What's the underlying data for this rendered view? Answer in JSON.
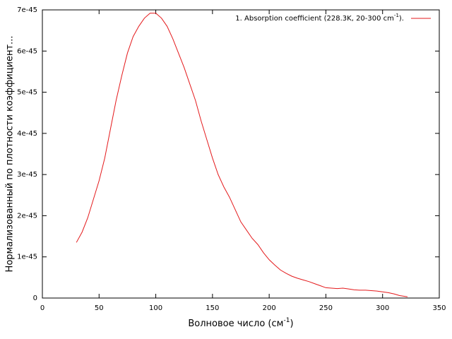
{
  "chart_data": {
    "type": "line",
    "x_label": [
      "Волновое число (см",
      "-1",
      ")"
    ],
    "y_label": "Нормализованный по плотности коэффициент...",
    "xlim": [
      0,
      350
    ],
    "xticks": [
      0,
      50,
      100,
      150,
      200,
      250,
      300,
      350
    ],
    "ylim": [
      0,
      7e-45
    ],
    "yticks": [
      0,
      {
        "value": 1e-45,
        "label": "1e-45"
      },
      {
        "value": 2e-45,
        "label": "2e-45"
      },
      {
        "value": 3e-45,
        "label": "3e-45"
      },
      {
        "value": 4e-45,
        "label": "4e-45"
      },
      {
        "value": 5e-45,
        "label": "5e-45"
      },
      {
        "value": 6e-45,
        "label": "6e-45"
      },
      {
        "value": 7e-45,
        "label": "7e-45"
      }
    ],
    "legend": "upper right",
    "x": [
      30,
      35,
      40,
      45,
      50,
      55,
      60,
      65,
      70,
      75,
      80,
      85,
      90,
      95,
      100,
      105,
      110,
      115,
      120,
      125,
      130,
      135,
      140,
      145,
      150,
      155,
      160,
      165,
      170,
      175,
      180,
      185,
      190,
      195,
      200,
      205,
      210,
      215,
      220,
      225,
      230,
      235,
      240,
      245,
      250,
      255,
      260,
      265,
      270,
      275,
      280,
      285,
      290,
      295,
      300,
      305,
      310,
      315,
      322
    ],
    "series": [
      {
        "name": [
          "1. Absorption coefficient (228.3K, 20-300 cm",
          "-1",
          ")."
        ],
        "color": "#e41a1c",
        "values": [
          1.35e-45,
          1.6e-45,
          1.95e-45,
          2.4e-45,
          2.85e-45,
          3.4e-45,
          4.1e-45,
          4.8e-45,
          5.4e-45,
          5.95e-45,
          6.35e-45,
          6.6e-45,
          6.8e-45,
          6.92e-45,
          6.92e-45,
          6.8e-45,
          6.6e-45,
          6.3e-45,
          5.95e-45,
          5.6e-45,
          5.2e-45,
          4.8e-45,
          4.3e-45,
          3.85e-45,
          3.4e-45,
          3e-45,
          2.7e-45,
          2.45e-45,
          2.15e-45,
          1.85e-45,
          1.65e-45,
          1.45e-45,
          1.3e-45,
          1.1e-45,
          9.3e-46,
          8e-46,
          6.8e-46,
          6e-46,
          5.3e-46,
          4.8e-46,
          4.4e-46,
          4e-46,
          3.5e-46,
          3e-46,
          2.5e-46,
          2.4e-46,
          2.3e-46,
          2.4e-46,
          2.2e-46,
          2e-46,
          1.9e-46,
          1.9e-46,
          1.8e-46,
          1.7e-46,
          1.5e-46,
          1.3e-46,
          1e-46,
          6e-47,
          3e-47
        ]
      }
    ]
  }
}
